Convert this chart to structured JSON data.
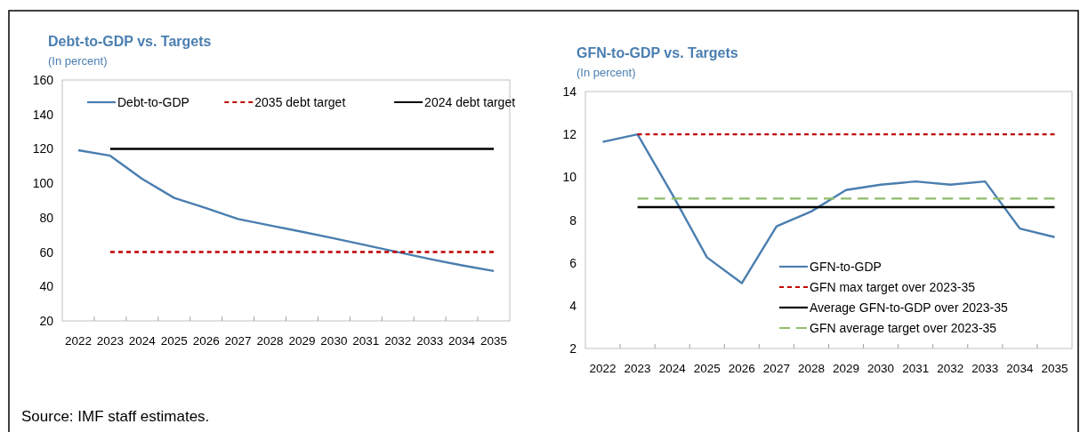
{
  "chart_data": [
    {
      "type": "line",
      "title": "Debt-to-GDP vs. Targets",
      "subtitle": "(In percent)",
      "categories": [
        "2022",
        "2023",
        "2024",
        "2025",
        "2026",
        "2027",
        "2028",
        "2029",
        "2030",
        "2031",
        "2032",
        "2033",
        "2034",
        "2035"
      ],
      "series": [
        {
          "name": "Debt-to-GDP",
          "color": "#4a7eb0",
          "line_style": "solid",
          "values": [
            119.2,
            116,
            102.5,
            91.5,
            85.5,
            79.2,
            75.5,
            71.8,
            68,
            64,
            60,
            56,
            52.3,
            49
          ]
        },
        {
          "name": "2035 debt target",
          "color": "#c00000",
          "line_style": "dashed",
          "values": [
            null,
            60,
            60,
            60,
            60,
            60,
            60,
            60,
            60,
            60,
            60,
            60,
            60,
            60
          ]
        },
        {
          "name": "2024 debt target",
          "color": "#000000",
          "line_style": "solid",
          "values": [
            null,
            120,
            120,
            120,
            120,
            120,
            120,
            120,
            120,
            120,
            120,
            120,
            120,
            120
          ]
        }
      ],
      "ylim": [
        20,
        160
      ],
      "yticks": [
        20,
        40,
        60,
        80,
        100,
        120,
        140,
        160
      ],
      "grid": false,
      "legend": "top",
      "marker": "none",
      "annotations": [
        "Source: IMF staff estimates."
      ]
    },
    {
      "type": "line",
      "title": "GFN-to-GDP vs. Targets",
      "subtitle": "(In percent)",
      "categories": [
        "2022",
        "2023",
        "2024",
        "2025",
        "2026",
        "2027",
        "2028",
        "2029",
        "2030",
        "2031",
        "2032",
        "2033",
        "2034",
        "2035"
      ],
      "series": [
        {
          "name": "GFN-to-GDP",
          "color": "#4a7eb0",
          "line_style": "solid",
          "values": [
            11.65,
            12,
            9.2,
            6.25,
            5.05,
            7.7,
            8.4,
            9.4,
            9.65,
            9.8,
            9.65,
            9.8,
            7.6,
            7.2
          ]
        },
        {
          "name": "GFN max target over 2023-35",
          "color": "#c00000",
          "line_style": "dashed",
          "values": [
            null,
            12,
            12,
            12,
            12,
            12,
            12,
            12,
            12,
            12,
            12,
            12,
            12,
            12
          ]
        },
        {
          "name": "Average GFN-to-GDP over 2023-35",
          "color": "#000000",
          "line_style": "solid",
          "values": [
            null,
            8.6,
            8.6,
            8.6,
            8.6,
            8.6,
            8.6,
            8.6,
            8.6,
            8.6,
            8.6,
            8.6,
            8.6,
            8.6
          ]
        },
        {
          "name": "GFN average target over 2023-35",
          "color": "#8fbc6a",
          "line_style": "longdash",
          "values": [
            null,
            9,
            9,
            9,
            9,
            9,
            9,
            9,
            9,
            9,
            9,
            9,
            9,
            9
          ]
        }
      ],
      "ylim": [
        2,
        14
      ],
      "yticks": [
        2,
        4,
        6,
        8,
        10,
        12,
        14
      ],
      "grid": false,
      "legend": "bottom right",
      "marker": "none"
    }
  ]
}
